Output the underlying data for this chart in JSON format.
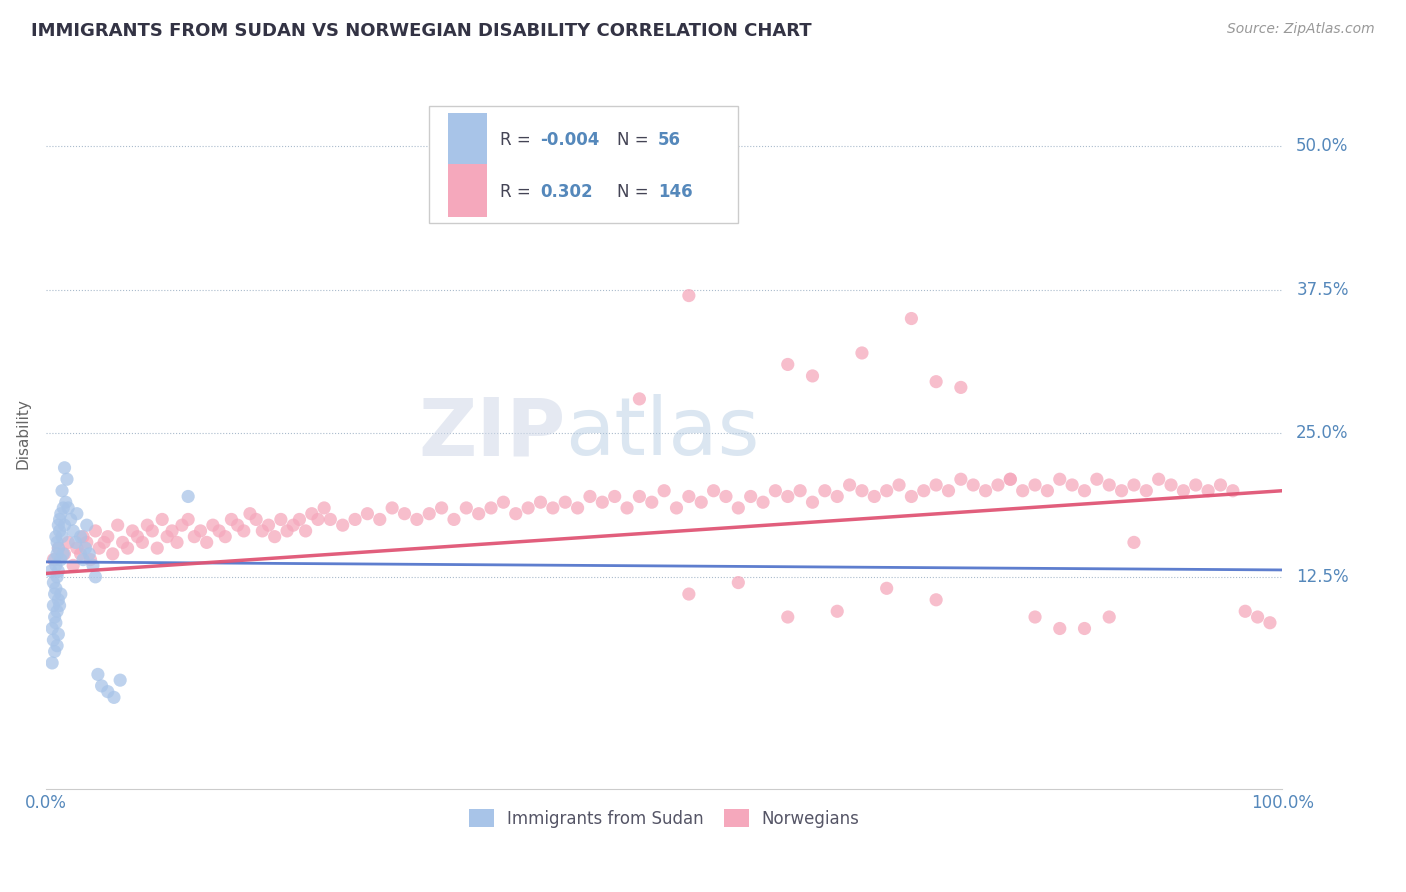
{
  "title": "IMMIGRANTS FROM SUDAN VS NORWEGIAN DISABILITY CORRELATION CHART",
  "source": "Source: ZipAtlas.com",
  "ylabel": "Disability",
  "y_tick_labels": [
    "12.5%",
    "25.0%",
    "37.5%",
    "50.0%"
  ],
  "y_tick_values": [
    0.125,
    0.25,
    0.375,
    0.5
  ],
  "x_min": 0.0,
  "x_max": 1.0,
  "y_min": -0.06,
  "y_max": 0.56,
  "blue_color": "#a8c4e8",
  "pink_color": "#f5a8bc",
  "blue_line_color": "#5577cc",
  "pink_line_color": "#e05575",
  "axis_label_color": "#5588bb",
  "title_color": "#333344",
  "sudan_x": [
    0.004,
    0.005,
    0.005,
    0.006,
    0.006,
    0.006,
    0.007,
    0.007,
    0.007,
    0.007,
    0.008,
    0.008,
    0.008,
    0.008,
    0.009,
    0.009,
    0.009,
    0.009,
    0.009,
    0.01,
    0.01,
    0.01,
    0.01,
    0.01,
    0.011,
    0.011,
    0.011,
    0.012,
    0.012,
    0.012,
    0.013,
    0.013,
    0.014,
    0.014,
    0.015,
    0.015,
    0.016,
    0.017,
    0.018,
    0.02,
    0.022,
    0.024,
    0.025,
    0.028,
    0.03,
    0.032,
    0.033,
    0.035,
    0.038,
    0.04,
    0.042,
    0.045,
    0.05,
    0.055,
    0.06,
    0.115
  ],
  "sudan_y": [
    0.13,
    0.08,
    0.05,
    0.12,
    0.1,
    0.07,
    0.14,
    0.11,
    0.09,
    0.06,
    0.16,
    0.135,
    0.115,
    0.085,
    0.155,
    0.145,
    0.125,
    0.095,
    0.065,
    0.17,
    0.15,
    0.13,
    0.105,
    0.075,
    0.175,
    0.165,
    0.1,
    0.18,
    0.14,
    0.11,
    0.2,
    0.16,
    0.185,
    0.145,
    0.22,
    0.17,
    0.19,
    0.21,
    0.185,
    0.175,
    0.165,
    0.155,
    0.18,
    0.16,
    0.14,
    0.15,
    0.17,
    0.145,
    0.135,
    0.125,
    0.04,
    0.03,
    0.025,
    0.02,
    0.035,
    0.195
  ],
  "norwegian_x": [
    0.006,
    0.01,
    0.015,
    0.018,
    0.022,
    0.025,
    0.028,
    0.03,
    0.033,
    0.036,
    0.04,
    0.043,
    0.047,
    0.05,
    0.054,
    0.058,
    0.062,
    0.066,
    0.07,
    0.074,
    0.078,
    0.082,
    0.086,
    0.09,
    0.094,
    0.098,
    0.102,
    0.106,
    0.11,
    0.115,
    0.12,
    0.125,
    0.13,
    0.135,
    0.14,
    0.145,
    0.15,
    0.155,
    0.16,
    0.165,
    0.17,
    0.175,
    0.18,
    0.185,
    0.19,
    0.195,
    0.2,
    0.205,
    0.21,
    0.215,
    0.22,
    0.225,
    0.23,
    0.24,
    0.25,
    0.26,
    0.27,
    0.28,
    0.29,
    0.3,
    0.31,
    0.32,
    0.33,
    0.34,
    0.35,
    0.36,
    0.37,
    0.38,
    0.39,
    0.4,
    0.41,
    0.42,
    0.43,
    0.44,
    0.45,
    0.46,
    0.47,
    0.48,
    0.49,
    0.5,
    0.51,
    0.52,
    0.53,
    0.54,
    0.55,
    0.56,
    0.57,
    0.58,
    0.59,
    0.6,
    0.61,
    0.62,
    0.63,
    0.64,
    0.65,
    0.66,
    0.67,
    0.68,
    0.69,
    0.7,
    0.71,
    0.72,
    0.73,
    0.74,
    0.75,
    0.76,
    0.77,
    0.78,
    0.79,
    0.8,
    0.81,
    0.82,
    0.83,
    0.84,
    0.85,
    0.86,
    0.87,
    0.88,
    0.89,
    0.9,
    0.91,
    0.92,
    0.93,
    0.94,
    0.95,
    0.96,
    0.97,
    0.98,
    0.99,
    0.48,
    0.52,
    0.56,
    0.6,
    0.64,
    0.68,
    0.72
  ],
  "norwegian_y": [
    0.14,
    0.15,
    0.145,
    0.155,
    0.135,
    0.15,
    0.145,
    0.16,
    0.155,
    0.14,
    0.165,
    0.15,
    0.155,
    0.16,
    0.145,
    0.17,
    0.155,
    0.15,
    0.165,
    0.16,
    0.155,
    0.17,
    0.165,
    0.15,
    0.175,
    0.16,
    0.165,
    0.155,
    0.17,
    0.175,
    0.16,
    0.165,
    0.155,
    0.17,
    0.165,
    0.16,
    0.175,
    0.17,
    0.165,
    0.18,
    0.175,
    0.165,
    0.17,
    0.16,
    0.175,
    0.165,
    0.17,
    0.175,
    0.165,
    0.18,
    0.175,
    0.185,
    0.175,
    0.17,
    0.175,
    0.18,
    0.175,
    0.185,
    0.18,
    0.175,
    0.18,
    0.185,
    0.175,
    0.185,
    0.18,
    0.185,
    0.19,
    0.18,
    0.185,
    0.19,
    0.185,
    0.19,
    0.185,
    0.195,
    0.19,
    0.195,
    0.185,
    0.195,
    0.19,
    0.2,
    0.185,
    0.195,
    0.19,
    0.2,
    0.195,
    0.185,
    0.195,
    0.19,
    0.2,
    0.195,
    0.2,
    0.19,
    0.2,
    0.195,
    0.205,
    0.2,
    0.195,
    0.2,
    0.205,
    0.195,
    0.2,
    0.205,
    0.2,
    0.21,
    0.205,
    0.2,
    0.205,
    0.21,
    0.2,
    0.205,
    0.2,
    0.21,
    0.205,
    0.2,
    0.21,
    0.205,
    0.2,
    0.205,
    0.2,
    0.21,
    0.205,
    0.2,
    0.205,
    0.2,
    0.205,
    0.2,
    0.095,
    0.09,
    0.085,
    0.28,
    0.11,
    0.12,
    0.09,
    0.095,
    0.115,
    0.105
  ],
  "extra_pink_high": [
    [
      0.48,
      0.44
    ],
    [
      0.52,
      0.37
    ],
    [
      0.6,
      0.31
    ],
    [
      0.62,
      0.3
    ],
    [
      0.66,
      0.32
    ],
    [
      0.7,
      0.35
    ],
    [
      0.72,
      0.295
    ],
    [
      0.74,
      0.29
    ],
    [
      0.78,
      0.21
    ],
    [
      0.8,
      0.09
    ],
    [
      0.82,
      0.08
    ],
    [
      0.84,
      0.08
    ],
    [
      0.86,
      0.09
    ],
    [
      0.88,
      0.155
    ]
  ],
  "blue_trend_y0": 0.138,
  "blue_trend_y1": 0.131,
  "pink_trend_y0": 0.128,
  "pink_trend_y1": 0.2
}
